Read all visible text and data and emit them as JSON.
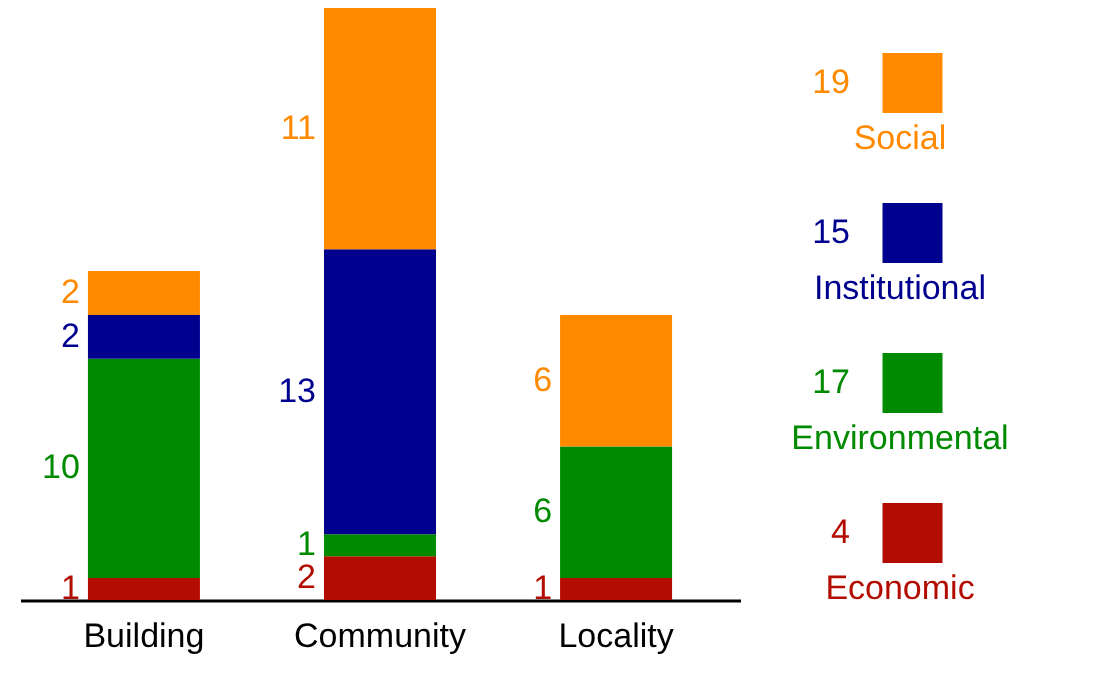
{
  "chart_data": {
    "type": "bar",
    "stacked": true,
    "data_labels": true,
    "legend": "right",
    "tick_labels": "x",
    "grid": false,
    "categories": [
      "Building",
      "Community",
      "Locality"
    ],
    "series": [
      {
        "name": "Economic",
        "color": "#b30c00",
        "values": [
          1,
          2,
          1
        ]
      },
      {
        "name": "Environmental",
        "color": "#008a00",
        "values": [
          10,
          1,
          6
        ]
      },
      {
        "name": "Institutional",
        "color": "#00008f",
        "values": [
          2,
          13,
          null
        ]
      },
      {
        "name": "Social",
        "color": "#ff8a00",
        "values": [
          2,
          11,
          6
        ]
      }
    ],
    "annotations": [
      "4",
      "17",
      "15",
      "19"
    ]
  }
}
